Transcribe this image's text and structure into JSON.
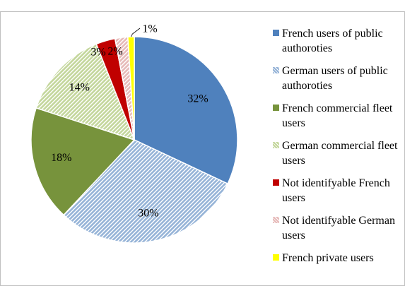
{
  "chart_data": {
    "type": "pie",
    "categories": [
      "French users of public authoroties",
      "German users of public authoroties",
      "French commercial fleet users",
      "German commercial fleet users",
      "Not identifyable French users",
      "Not identifyable German users",
      "French private users"
    ],
    "values": [
      32,
      30,
      18,
      14,
      3,
      2,
      1
    ],
    "value_labels": [
      "32%",
      "30%",
      "18%",
      "14%",
      "3%",
      "2%",
      "1%"
    ],
    "colors": [
      "#4f81bd",
      "#95b3d7",
      "#77933c",
      "#c3d69b",
      "#c00000",
      "#e6b9b8",
      "#ffff00"
    ],
    "hatched": [
      false,
      true,
      false,
      true,
      false,
      true,
      false
    ],
    "legend": "right"
  }
}
